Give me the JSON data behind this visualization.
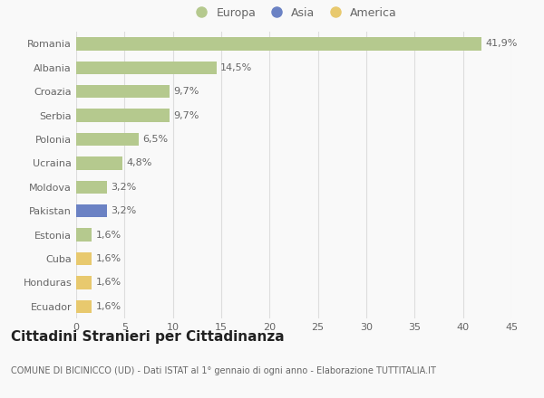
{
  "categories": [
    "Romania",
    "Albania",
    "Croazia",
    "Serbia",
    "Polonia",
    "Ucraina",
    "Moldova",
    "Pakistan",
    "Estonia",
    "Cuba",
    "Honduras",
    "Ecuador"
  ],
  "values": [
    41.9,
    14.5,
    9.7,
    9.7,
    6.5,
    4.8,
    3.2,
    3.2,
    1.6,
    1.6,
    1.6,
    1.6
  ],
  "labels": [
    "41,9%",
    "14,5%",
    "9,7%",
    "9,7%",
    "6,5%",
    "4,8%",
    "3,2%",
    "3,2%",
    "1,6%",
    "1,6%",
    "1,6%",
    "1,6%"
  ],
  "colors": [
    "#b5c98e",
    "#b5c98e",
    "#b5c98e",
    "#b5c98e",
    "#b5c98e",
    "#b5c98e",
    "#b5c98e",
    "#6b82c4",
    "#b5c98e",
    "#e8c96e",
    "#e8c96e",
    "#e8c96e"
  ],
  "legend_labels": [
    "Europa",
    "Asia",
    "America"
  ],
  "legend_colors": [
    "#b5c98e",
    "#6b82c4",
    "#e8c96e"
  ],
  "title": "Cittadini Stranieri per Cittadinanza",
  "subtitle": "COMUNE DI BICINICCO (UD) - Dati ISTAT al 1° gennaio di ogni anno - Elaborazione TUTTITALIA.IT",
  "xlim": [
    0,
    45
  ],
  "xticks": [
    0,
    5,
    10,
    15,
    20,
    25,
    30,
    35,
    40,
    45
  ],
  "background_color": "#f9f9f9",
  "grid_color": "#dddddd",
  "bar_height": 0.55,
  "label_fontsize": 8,
  "title_fontsize": 11,
  "subtitle_fontsize": 7,
  "tick_fontsize": 8,
  "legend_fontsize": 9
}
